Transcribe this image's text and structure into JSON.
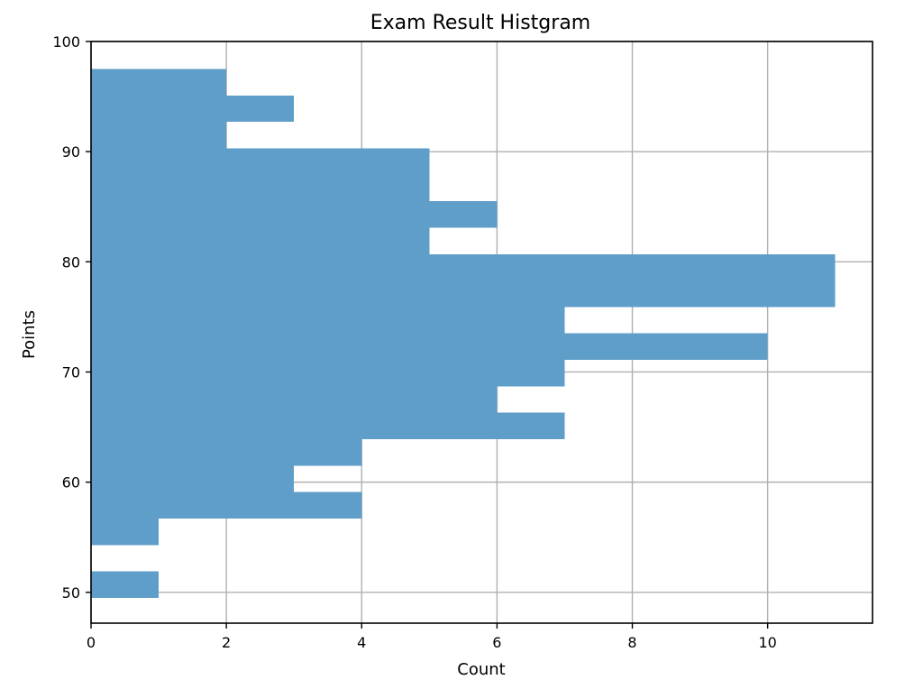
{
  "chart_data": {
    "type": "bar",
    "orientation": "horizontal",
    "title": "Exam Result Histgram",
    "xlabel": "Count",
    "ylabel": "Points",
    "xlim": [
      0,
      11.55
    ],
    "ylim": [
      47.2,
      100
    ],
    "x_ticks": [
      0,
      2,
      4,
      6,
      8,
      10
    ],
    "y_ticks": [
      50,
      60,
      70,
      80,
      90,
      100
    ],
    "grid": true,
    "bar_color": "#5f9ec9",
    "bins": [
      {
        "from": 49.5,
        "to": 51.9,
        "count": 1
      },
      {
        "from": 51.9,
        "to": 54.3,
        "count": 0
      },
      {
        "from": 54.3,
        "to": 56.7,
        "count": 1
      },
      {
        "from": 56.7,
        "to": 59.1,
        "count": 4
      },
      {
        "from": 59.1,
        "to": 61.5,
        "count": 3
      },
      {
        "from": 61.5,
        "to": 63.9,
        "count": 4
      },
      {
        "from": 63.9,
        "to": 66.3,
        "count": 7
      },
      {
        "from": 66.3,
        "to": 68.7,
        "count": 6
      },
      {
        "from": 68.7,
        "to": 71.1,
        "count": 7
      },
      {
        "from": 71.1,
        "to": 73.5,
        "count": 10
      },
      {
        "from": 73.5,
        "to": 75.9,
        "count": 7
      },
      {
        "from": 75.9,
        "to": 78.3,
        "count": 11
      },
      {
        "from": 78.3,
        "to": 80.7,
        "count": 11
      },
      {
        "from": 80.7,
        "to": 83.1,
        "count": 5
      },
      {
        "from": 83.1,
        "to": 85.5,
        "count": 6
      },
      {
        "from": 85.5,
        "to": 87.9,
        "count": 5
      },
      {
        "from": 87.9,
        "to": 90.3,
        "count": 5
      },
      {
        "from": 90.3,
        "to": 92.7,
        "count": 2
      },
      {
        "from": 92.7,
        "to": 95.1,
        "count": 3
      },
      {
        "from": 95.1,
        "to": 97.5,
        "count": 2
      }
    ]
  }
}
